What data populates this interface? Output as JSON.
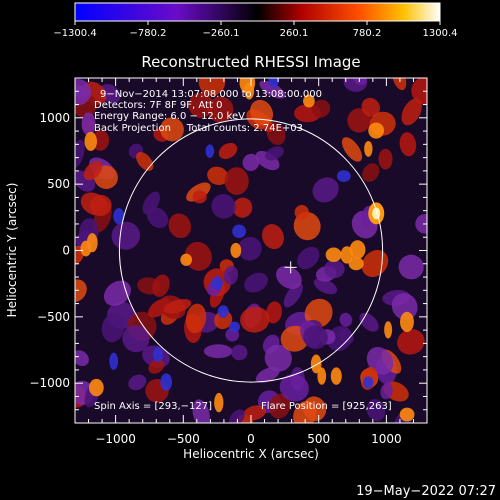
{
  "chart_data": {
    "type": "heatmap",
    "title": "Reconstructed RHESSI Image",
    "xlabel": "Heliocentric X (arcsec)",
    "ylabel": "Heliocentric Y (arcsec)",
    "xlim": [
      -1300,
      1300
    ],
    "ylim": [
      -1300,
      1300
    ],
    "xticks": [
      -1000,
      -500,
      0,
      500,
      1000
    ],
    "yticks": [
      -1000,
      -500,
      0,
      500,
      1000
    ],
    "xtick_labels": [
      "−1000",
      "−500",
      "0",
      "500",
      "1000"
    ],
    "ytick_labels": [
      "−1000",
      "−500",
      "0",
      "500",
      "1000"
    ],
    "colorbar": {
      "min": -1300.4,
      "max": 1300.4,
      "tick_values": [
        -1300.4,
        -780.2,
        -260.1,
        260.1,
        780.2,
        1300.4
      ],
      "tick_labels": [
        "−1300.4",
        "−780.2",
        "−260.1",
        "260.1",
        "780.2",
        "1300.4"
      ]
    },
    "info_lines": [
      "9−Nov−2014 13:07:08.000 to 13:08:00.000",
      "Detectors: 7F 8F 9F, Att 0",
      "Energy Range: 6.0 − 12.0 keV",
      "Back Projection     Total counts: 2.74E+03"
    ],
    "spin_axis_text": "Spin Axis = [293,−127]",
    "flare_position_text": "Flare Position = [925,263]",
    "spin_axis": [
      293,
      -127
    ],
    "flare_position": [
      925,
      263
    ],
    "solar_limb_radius_arcsec": 972,
    "peak": {
      "x": 925,
      "y": 280
    },
    "grid": false,
    "timestamp": "19−May−2022 07:27"
  }
}
